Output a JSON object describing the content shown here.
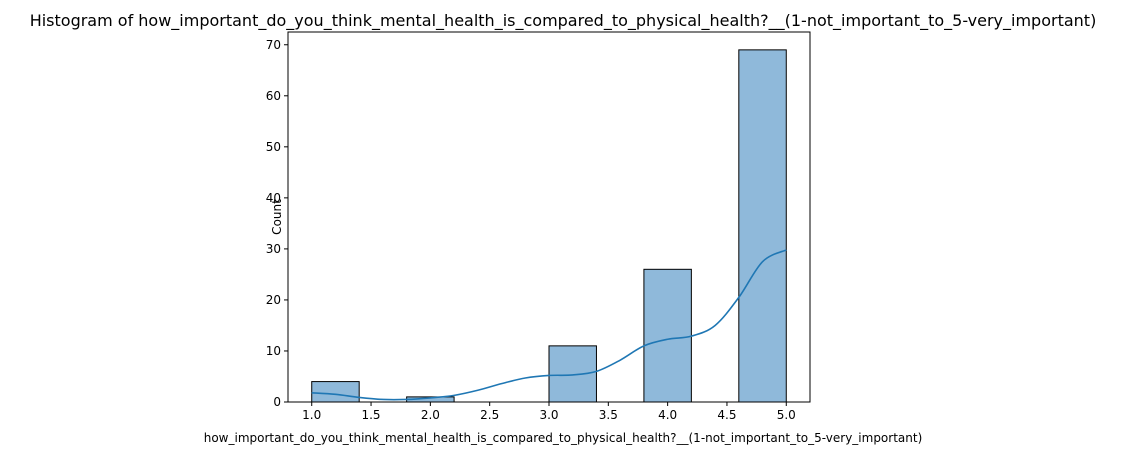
{
  "chart_data": {
    "type": "bar",
    "title": "Histogram of how_important_do_you_think_mental_health_is_compared_to_physical_health?__(1-not_important_to_5-very_important)",
    "xlabel": "how_important_do_you_think_mental_health_is_compared_to_physical_health?__(1-not_important_to_5-very_important)",
    "ylabel": "Count",
    "xlim": [
      0.8,
      5.2
    ],
    "ylim": [
      0,
      72.5
    ],
    "xticks": [
      "1.0",
      "1.5",
      "2.0",
      "2.5",
      "3.0",
      "3.5",
      "4.0",
      "4.5",
      "5.0"
    ],
    "yticks": [
      "0",
      "10",
      "20",
      "30",
      "40",
      "50",
      "60",
      "70"
    ],
    "bins": [
      {
        "start": 1.0,
        "end": 1.4,
        "count": 4
      },
      {
        "start": 1.4,
        "end": 1.8,
        "count": 0
      },
      {
        "start": 1.8,
        "end": 2.2,
        "count": 1
      },
      {
        "start": 2.2,
        "end": 2.6,
        "count": 0
      },
      {
        "start": 2.6,
        "end": 3.0,
        "count": 0
      },
      {
        "start": 3.0,
        "end": 3.4,
        "count": 11
      },
      {
        "start": 3.4,
        "end": 3.8,
        "count": 0
      },
      {
        "start": 3.8,
        "end": 4.2,
        "count": 26
      },
      {
        "start": 4.2,
        "end": 4.6,
        "count": 0
      },
      {
        "start": 4.6,
        "end": 5.0,
        "count": 69
      }
    ],
    "kde": {
      "x": [
        1.0,
        1.2,
        1.4,
        1.6,
        1.8,
        2.0,
        2.2,
        2.4,
        2.6,
        2.8,
        3.0,
        3.2,
        3.4,
        3.6,
        3.8,
        4.0,
        4.2,
        4.4,
        4.6,
        4.8,
        5.0
      ],
      "y": [
        1.8,
        1.5,
        0.9,
        0.5,
        0.5,
        0.8,
        1.3,
        2.3,
        3.6,
        4.7,
        5.2,
        5.3,
        6.0,
        8.2,
        11.0,
        12.3,
        12.9,
        15.0,
        20.5,
        27.5,
        29.8
      ]
    },
    "colors": {
      "bar_fill": "#8fb9da",
      "bar_edge": "#000000",
      "kde_line": "#1f77b4"
    },
    "grid": false,
    "legend": "none"
  }
}
